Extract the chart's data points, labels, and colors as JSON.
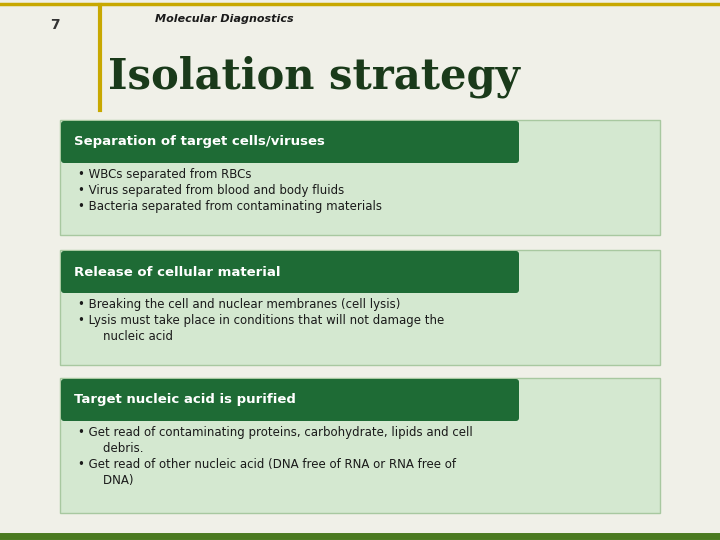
{
  "title": "Isolation strategy",
  "slide_number": "7",
  "topic": "Molecular Diagnostics",
  "background_color": "#f0f0e8",
  "title_color": "#1a3a1a",
  "header_bg_color": "#1e6b35",
  "header_text_color": "#ffffff",
  "section_bg_color": "#d4e8d0",
  "section_border_color": "#a8c8a0",
  "top_border_color": "#c8a800",
  "bottom_border_color": "#4a7a20",
  "bullet_color": "#1a1a1a",
  "sections": [
    {
      "header": "Separation of target cells/viruses",
      "bullets": [
        "WBCs separated from RBCs",
        "Virus separated from blood and body fluids",
        "Bacteria separated from contaminating materials"
      ]
    },
    {
      "header": "Release of cellular material",
      "bullets": [
        "Breaking the cell and nuclear membranes (cell lysis)",
        "Lysis must take place in conditions that will not damage the\n    nucleic acid"
      ]
    },
    {
      "header": "Target nucleic acid is purified",
      "bullets": [
        "Get read of contaminating proteins, carbohydrate, lipids and cell\n    debris.",
        "Get read of other nucleic acid (DNA free of RNA or RNA free of\n    DNA)"
      ]
    }
  ]
}
